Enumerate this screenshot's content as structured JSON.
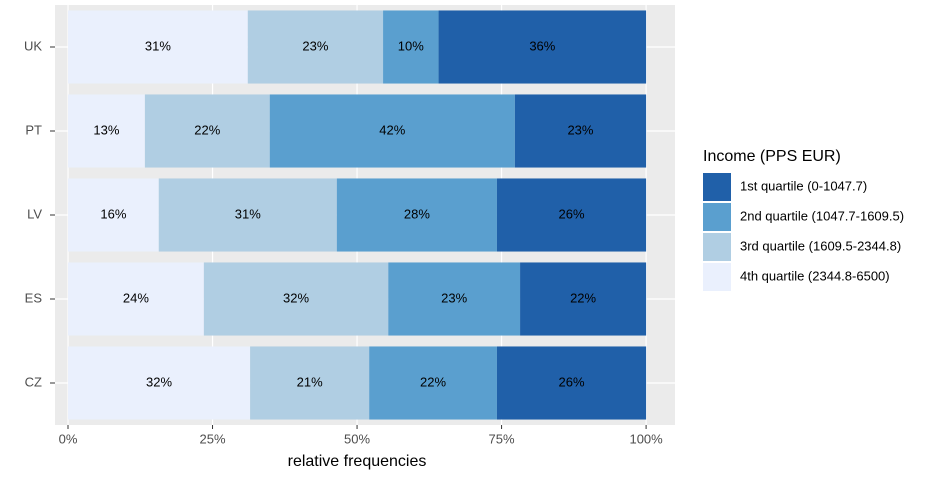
{
  "chart_data": {
    "type": "bar",
    "orientation": "horizontal",
    "stacked": true,
    "categories": [
      "UK",
      "PT",
      "LV",
      "ES",
      "CZ"
    ],
    "x_label": "relative frequencies",
    "legend_title": "Income (PPS EUR)",
    "legend_position": "right",
    "grid": true,
    "xlim": [
      -2.25,
      105
    ],
    "xticks": [
      {
        "value": 0,
        "label": "0%"
      },
      {
        "value": 25,
        "label": "25%"
      },
      {
        "value": 50,
        "label": "50%"
      },
      {
        "value": 75,
        "label": "75%"
      },
      {
        "value": 100,
        "label": "100%"
      }
    ],
    "series": [
      {
        "name": "1st quartile (0-1047.7)",
        "color": "#2060a9",
        "values": [
          35.9,
          22.7,
          25.8,
          21.8,
          25.8
        ],
        "value_labels": [
          "36%",
          "23%",
          "26%",
          "22%",
          "26%"
        ]
      },
      {
        "name": "2nd quartile (1047.7-1609.5)",
        "color": "#5a9fcf",
        "values": [
          9.6,
          42.4,
          27.7,
          22.8,
          22.1
        ],
        "value_labels": [
          "10%",
          "42%",
          "28%",
          "23%",
          "22%"
        ]
      },
      {
        "name": "3rd quartile (1609.5-2344.8)",
        "color": "#b0cee3",
        "values": [
          23.4,
          21.6,
          30.8,
          31.9,
          20.6
        ],
        "value_labels": [
          "23%",
          "22%",
          "31%",
          "32%",
          "21%"
        ]
      },
      {
        "name": "4th quartile (2344.8-6500)",
        "color": "#eaf0fd",
        "values": [
          31.1,
          13.3,
          15.7,
          23.5,
          31.5
        ],
        "value_labels": [
          "31%",
          "13%",
          "16%",
          "24%",
          "32%"
        ]
      }
    ]
  }
}
